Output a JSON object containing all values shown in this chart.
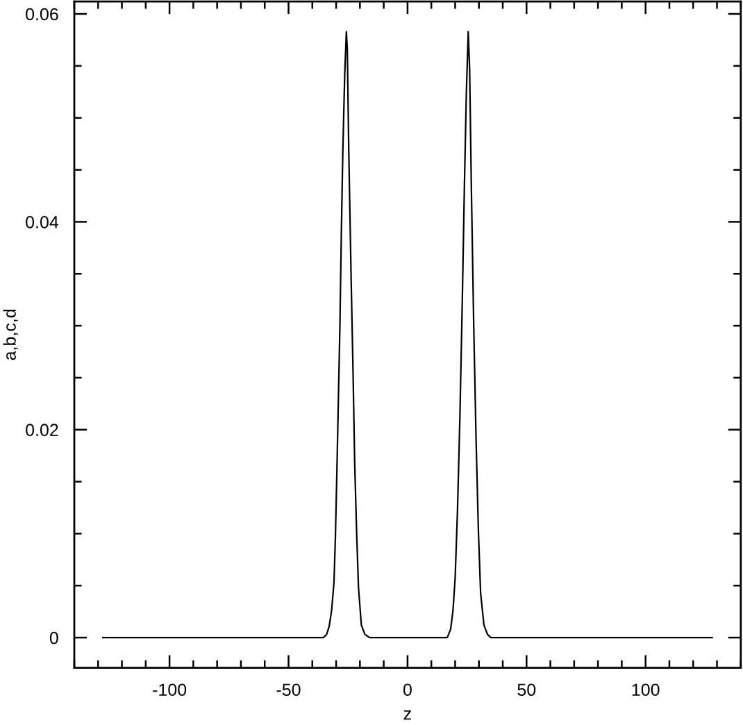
{
  "chart_data": {
    "type": "line",
    "xlabel": "z",
    "ylabel": "a,b,c,d",
    "series": [
      {
        "color": "#000000",
        "x": [
          -128,
          -35.4,
          -34.0,
          -32.9,
          -31.9,
          -30.9,
          -30.3,
          -29.6,
          -29.0,
          -28.4,
          -27.8,
          -27.2,
          -26.4,
          -25.7,
          -25.3,
          -24.7,
          -23.7,
          -22.9,
          -22.2,
          -21.4,
          -20.6,
          -19.4,
          -17.9,
          -15.9,
          16.7,
          18.1,
          19.1,
          20.0,
          21.0,
          22.0,
          23.0,
          23.9,
          24.7,
          25.5,
          26.1,
          26.8,
          27.8,
          28.8,
          29.8,
          30.7,
          32.1,
          33.6,
          35.0,
          128
        ],
        "values": [
          0,
          0,
          0.0003,
          0.0011,
          0.0026,
          0.0053,
          0.0097,
          0.0168,
          0.0235,
          0.0301,
          0.039,
          0.0466,
          0.0541,
          0.0583,
          0.0566,
          0.047,
          0.0346,
          0.0257,
          0.0168,
          0.0102,
          0.0048,
          0.0012,
          0.0003,
          0,
          0,
          0.0008,
          0.0026,
          0.0057,
          0.0123,
          0.0212,
          0.0323,
          0.0435,
          0.0523,
          0.0583,
          0.0546,
          0.0435,
          0.0301,
          0.019,
          0.0101,
          0.0043,
          0.0012,
          0.0003,
          0,
          0
        ]
      }
    ],
    "xlim": [
      -140,
      140
    ],
    "xticks": [
      -100,
      -50,
      0,
      50,
      100
    ],
    "ylim": [
      -0.0029,
      0.0612
    ],
    "yticks": [
      0,
      0.02,
      0.04,
      0.06
    ],
    "line_style": "solid",
    "marker": "none"
  }
}
